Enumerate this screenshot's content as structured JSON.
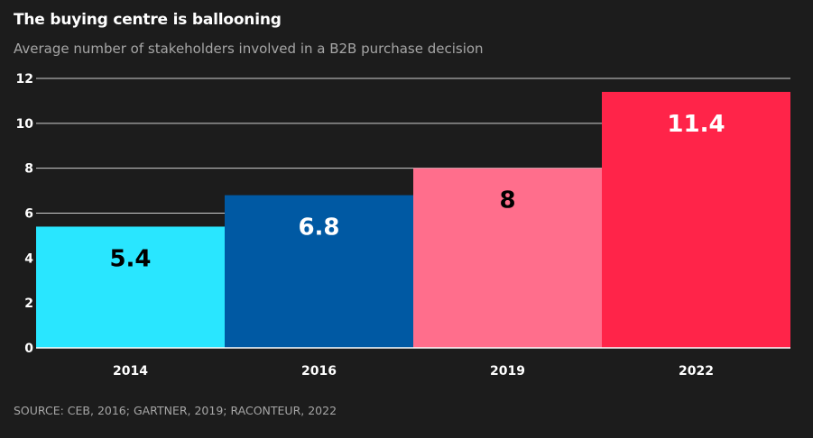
{
  "title": "The buying centre is ballooning",
  "subtitle": "Average number of stakeholders involved in a B2B purchase decision",
  "source": "SOURCE: CEB, 2016; GARTNER, 2019; RACONTEUR, 2022",
  "colors": {
    "background": "#1c1c1c",
    "text": "#ffffff",
    "muted": "#a6a6a6",
    "grid": "#cfcfcf",
    "bars": [
      "#29e6ff",
      "#0059a3",
      "#ff6e8c",
      "#ff2449"
    ],
    "label_colors": [
      "#000000",
      "#ffffff",
      "#000000",
      "#ffffff"
    ]
  },
  "chart_data": {
    "type": "bar",
    "title": "The buying centre is ballooning",
    "subtitle": "Average number of stakeholders involved in a B2B purchase decision",
    "categories": [
      "2014",
      "2016",
      "2019",
      "2022"
    ],
    "values": [
      5.4,
      6.8,
      8,
      11.4
    ],
    "value_labels": [
      "5.4",
      "6.8",
      "8",
      "11.4"
    ],
    "xlabel": "",
    "ylabel": "",
    "ylim": [
      0,
      12
    ],
    "yticks": [
      0,
      2,
      4,
      6,
      8,
      10,
      12
    ],
    "grid": true,
    "legend": "none"
  }
}
